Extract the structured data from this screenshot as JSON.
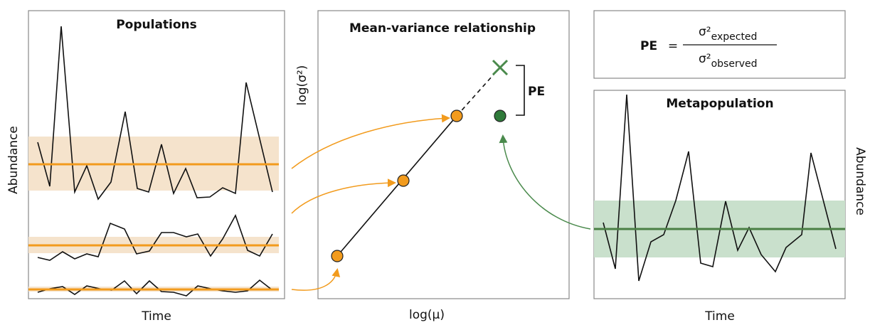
{
  "populations_panel": {
    "title": "Populations",
    "x_label": "Time",
    "y_label": "Abundance"
  },
  "mean_variance_panel": {
    "title": "Mean-variance relationship",
    "x_label": "log(μ)",
    "y_label": "log(σ²)",
    "gap_label": "PE"
  },
  "formula": {
    "lhs": "PE",
    "equals": "=",
    "numerator": {
      "symbol": "σ²",
      "subscript": "expected"
    },
    "denominator": {
      "symbol": "σ²",
      "subscript": "observed"
    }
  },
  "metapopulation_panel": {
    "title": "Metapopulation",
    "x_label": "Time",
    "y_label": "Abundance"
  }
}
